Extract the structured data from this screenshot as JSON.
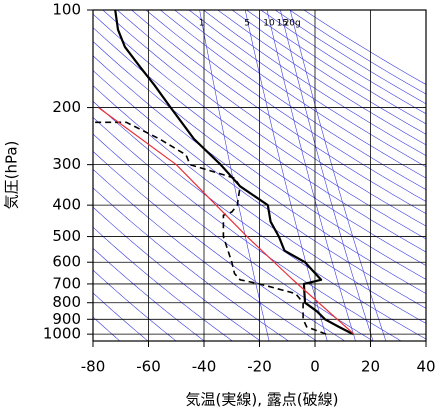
{
  "chart_data": {
    "type": "line",
    "xlabel": "気温(実線), 露点(破線)",
    "ylabel": "気圧(hPa)",
    "xlim": [
      -80,
      40
    ],
    "xticks": [
      -80,
      -60,
      -40,
      -20,
      0,
      20,
      40
    ],
    "ylim": [
      100,
      1050
    ],
    "yticks": [
      100,
      200,
      300,
      400,
      500,
      600,
      700,
      800,
      900,
      1000
    ],
    "log_y": true,
    "y_inverted": true,
    "grid": true,
    "mixing_ratio_lines": [
      1,
      5,
      10,
      15,
      {
        "value": 20,
        "label": "20g"
      }
    ],
    "series": [
      {
        "color": "#000000",
        "style": "solid",
        "y": [
          1000,
          950,
          900,
          850,
          800,
          700,
          680,
          600,
          553,
          500,
          450,
          400,
          350,
          300,
          250,
          200,
          170,
          150,
          130,
          115,
          100
        ],
        "x": [
          13.7,
          8.6,
          3.6,
          0.7,
          -3.6,
          -4,
          2.2,
          -3.6,
          -11,
          -13,
          -16,
          -17,
          -27,
          -34,
          -43.6,
          -52,
          -58,
          -63,
          -68.5,
          -71,
          -72
        ]
      },
      {
        "color": "#000000",
        "style": "dashed",
        "y": [
          1000,
          950,
          900,
          800,
          750,
          700,
          680,
          650,
          600,
          500,
          430,
          420,
          400,
          350,
          330,
          300,
          280,
          250,
          222,
          222
        ],
        "x": [
          4,
          -3,
          -4.3,
          -4.3,
          -7,
          -20,
          -27,
          -29,
          -30,
          -33,
          -33,
          -30,
          -28,
          -27,
          -29,
          -45,
          -46.5,
          -56,
          -68,
          -83
        ]
      },
      {
        "color": "#e8303a",
        "style": "solid",
        "y": [
          1000,
          676,
          500,
          300,
          200
        ],
        "x": [
          14,
          -8.3,
          -24.5,
          -50,
          -78
        ]
      }
    ]
  }
}
